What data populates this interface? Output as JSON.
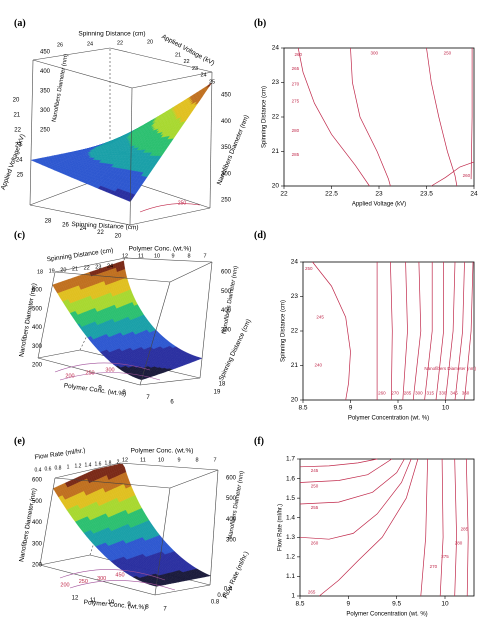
{
  "chart_data": [
    {
      "panel": "(a)",
      "type": "surface3d",
      "axes": {
        "x": {
          "label": "Spinning Distance (cm)",
          "ticks": [
            "28",
            "26",
            "24",
            "22",
            "20"
          ]
        },
        "y": {
          "label": "Applied Voltage (kV)",
          "ticks": [
            "25",
            "24",
            "23",
            "22",
            "21",
            "20"
          ]
        },
        "z": {
          "label": "Nanofibers Diameter (nm)",
          "ticks": [
            "450",
            "400",
            "350",
            "300",
            "250"
          ]
        }
      },
      "top_axis_labels": [
        "Spinning Distance (cm)",
        "Applied Voltage (kV)"
      ],
      "top_ticks_a": [
        "26",
        "24",
        "22",
        "20"
      ],
      "top_ticks_b": [
        "21",
        "22",
        "23",
        "24",
        "25"
      ],
      "back_z_ticks": [
        "450",
        "400",
        "350",
        "300",
        "250"
      ],
      "floor_tick": "250"
    },
    {
      "panel": "(b)",
      "type": "contour",
      "xlabel": "Applied Voltage (kV)",
      "ylabel": "Spinning Distance (cm)",
      "xlim": [
        22,
        24
      ],
      "ylim": [
        20,
        24
      ],
      "xticks": [
        "22",
        "22.5",
        "23",
        "23.5",
        "24"
      ],
      "yticks": [
        "20",
        "21",
        "22",
        "23",
        "24"
      ],
      "contour_labels": [
        "260",
        "265",
        "270",
        "275",
        "280",
        "285",
        "300",
        "250",
        "260"
      ]
    },
    {
      "panel": "(c)",
      "type": "surface3d",
      "axes": {
        "x": {
          "label": "Polymer Conc. (wt.%)",
          "ticks": [
            "9",
            "8",
            "7",
            "6"
          ]
        },
        "y": {
          "label": "Spinning Distance (cm)",
          "ticks": [
            "19",
            "18"
          ]
        },
        "z": {
          "label": "Nanofibers Diameter (nm)",
          "ticks": [
            "600",
            "500",
            "400",
            "300",
            "200"
          ]
        }
      },
      "top_axis_labels": [
        "Spinning Distance (cm)",
        "Polymer Conc. (wt.%)"
      ],
      "top_ticks_a": [
        "18",
        "19",
        "20",
        "21",
        "22",
        "23",
        "24"
      ],
      "top_ticks_b": [
        "12",
        "11",
        "10",
        "9",
        "8",
        "7"
      ],
      "back_z_ticks": [
        "600",
        "500",
        "400",
        "300"
      ],
      "floor_ticks": [
        "200",
        "250",
        "300"
      ]
    },
    {
      "panel": "(d)",
      "type": "contour",
      "xlabel": "Polymer Concentration (wt. %)",
      "ylabel": "Spinning Distance (cm)",
      "xlim": [
        8.5,
        10.3
      ],
      "ylim": [
        20,
        24
      ],
      "xticks": [
        "8.5",
        "9",
        "9.5",
        "10"
      ],
      "yticks": [
        "20",
        "21",
        "22",
        "23",
        "24"
      ],
      "contour_labels": [
        "250",
        "245",
        "240",
        "260",
        "270",
        "285",
        "300",
        "315",
        "330",
        "345",
        "360"
      ],
      "annotation": "Nanofibers Diameter (nm)"
    },
    {
      "panel": "(e)",
      "type": "surface3d",
      "axes": {
        "x": {
          "label": "Polymer Conc. (wt.%)",
          "ticks": [
            "12",
            "11",
            "10",
            "9",
            "8",
            "7"
          ]
        },
        "y": {
          "label": "Flow Rate (ml/hr.)",
          "ticks": [
            "0.8",
            "0.6",
            "0.4"
          ]
        },
        "z": {
          "label": "Nanofibers Diameter (nm)",
          "ticks": [
            "600",
            "500",
            "400",
            "300",
            "200"
          ]
        }
      },
      "top_axis_labels": [
        "Flow Rate (ml/hr.)",
        "Polymer Conc. (wt.%)"
      ],
      "top_ticks_a": [
        "0.4",
        "0.6",
        "0.8",
        "1",
        "1.2",
        "1.4",
        "1.6",
        "1.8",
        "2"
      ],
      "top_ticks_b": [
        "12",
        "11",
        "10",
        "9",
        "8",
        "7"
      ],
      "back_z_ticks": [
        "600",
        "500",
        "400",
        "300"
      ],
      "floor_ticks": [
        "200",
        "250",
        "300",
        "450"
      ]
    },
    {
      "panel": "(f)",
      "type": "contour",
      "xlabel": "Polymer Concentration (wt. %)",
      "ylabel": "Flow Rate (ml/hr.)",
      "xlim": [
        8.5,
        10.3
      ],
      "ylim": [
        1,
        1.7
      ],
      "xticks": [
        "8.5",
        "9",
        "9.5",
        "10"
      ],
      "yticks": [
        "1",
        "1.1",
        "1.2",
        "1.3",
        "1.4",
        "1.5",
        "1.6",
        "1.7"
      ],
      "contour_labels": [
        "245",
        "250",
        "255",
        "260",
        "265",
        "270",
        "275",
        "280",
        "285"
      ]
    }
  ],
  "colors": {
    "surface": [
      "#1a1a3a",
      "#2a2fa0",
      "#2e58d0",
      "#1aa0a8",
      "#2cc070",
      "#a8d830",
      "#e0c020",
      "#c07020",
      "#7a2a18"
    ],
    "contour_line": "#c0284a",
    "axis": "#000000"
  }
}
